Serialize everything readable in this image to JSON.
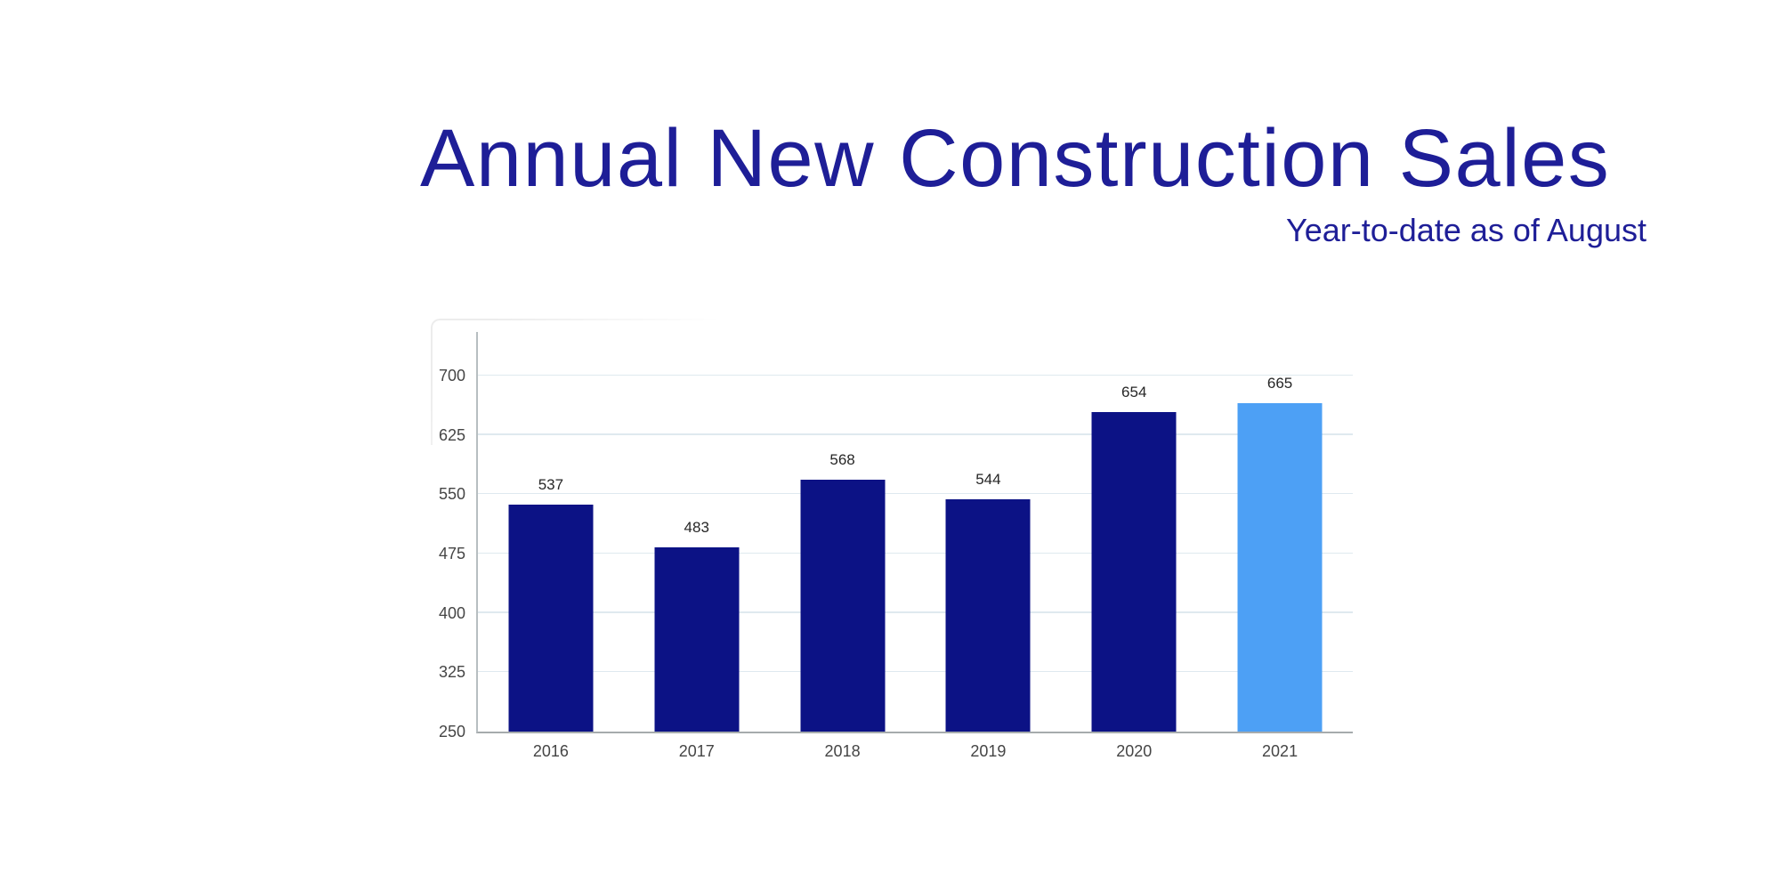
{
  "title": "Annual New Construction Sales",
  "subtitle": "Year-to-date as of August",
  "colors": {
    "title_text": "#1e1e97",
    "subtitle_text": "#1e1e97",
    "bar": "#0c1285",
    "highlight_bar": "#4da0f5",
    "gridline": "#dfe9ef",
    "y_axis_line": "#b7bec1",
    "x_axis_line": "#a6abad",
    "tick_label": "#454545",
    "value_label": "#262626"
  },
  "chart_data": {
    "type": "bar",
    "title": "Annual New Construction Sales",
    "subtitle": "Year-to-date as of August",
    "categories": [
      "2016",
      "2017",
      "2018",
      "2019",
      "2020",
      "2021"
    ],
    "values": [
      537,
      483,
      568,
      544,
      654,
      665
    ],
    "highlight_index": 5,
    "xlabel": "",
    "ylabel": "",
    "ylim": [
      250,
      700
    ],
    "yticks": [
      250,
      325,
      400,
      475,
      550,
      625,
      700
    ],
    "grid": true,
    "legend": false,
    "data_labels": true
  }
}
